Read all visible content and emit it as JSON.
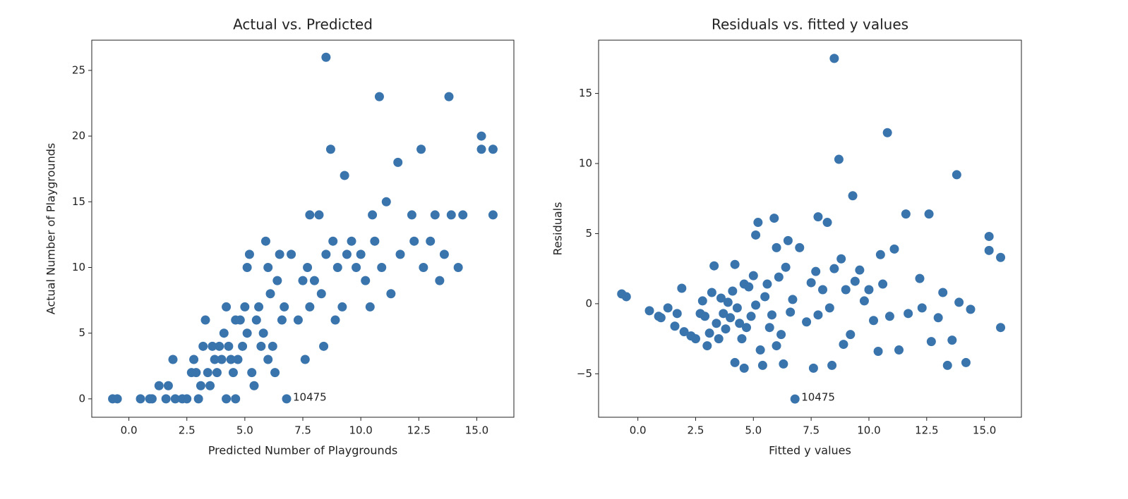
{
  "chart_data": [
    {
      "type": "scatter",
      "title": "Actual vs. Predicted",
      "x_label": "Predicted Number of Playgrounds",
      "y_label": "Actual Number of Playgrounds",
      "color": "#3a74ad",
      "x": [
        -0.7,
        -0.5,
        0.5,
        0.9,
        1.0,
        1.3,
        1.6,
        1.7,
        1.9,
        2.0,
        2.3,
        2.5,
        2.7,
        2.8,
        2.9,
        3.0,
        3.1,
        3.2,
        3.3,
        3.4,
        3.5,
        3.6,
        3.7,
        3.8,
        3.9,
        4.0,
        4.1,
        4.2,
        4.2,
        4.3,
        4.4,
        4.5,
        4.6,
        4.6,
        4.7,
        4.8,
        4.9,
        5.0,
        5.1,
        5.1,
        5.2,
        5.3,
        5.4,
        5.5,
        5.6,
        5.7,
        5.8,
        5.9,
        6.0,
        6.0,
        6.1,
        6.2,
        6.3,
        6.4,
        6.5,
        6.6,
        6.7,
        6.8,
        7.0,
        7.3,
        7.5,
        7.6,
        7.7,
        7.8,
        7.8,
        8.0,
        8.2,
        8.3,
        8.4,
        8.5,
        8.5,
        8.7,
        8.8,
        8.9,
        9.0,
        9.2,
        9.3,
        9.4,
        9.6,
        9.8,
        10.0,
        10.2,
        10.4,
        10.5,
        10.6,
        10.8,
        10.9,
        11.1,
        11.3,
        11.6,
        11.7,
        12.2,
        12.3,
        12.6,
        12.7,
        13.0,
        13.2,
        13.4,
        13.6,
        13.8,
        13.9,
        14.2,
        14.4,
        15.2,
        15.2,
        15.7,
        15.7
      ],
      "values": [
        0,
        0,
        0,
        0,
        0,
        1,
        0,
        1,
        3,
        0,
        0,
        0,
        2,
        3,
        2,
        0,
        1,
        4,
        6,
        2,
        1,
        4,
        3,
        2,
        4,
        3,
        5,
        7,
        0,
        4,
        3,
        2,
        6,
        0,
        3,
        6,
        4,
        7,
        5,
        10,
        11,
        2,
        1,
        6,
        7,
        4,
        5,
        12,
        10,
        3,
        8,
        4,
        2,
        9,
        11,
        6,
        7,
        0,
        11,
        6,
        9,
        3,
        10,
        7,
        14,
        9,
        14,
        8,
        4,
        11,
        26,
        19,
        12,
        6,
        10,
        7,
        17,
        11,
        12,
        10,
        11,
        9,
        7,
        14,
        12,
        23,
        10,
        15,
        8,
        18,
        11,
        14,
        12,
        19,
        10,
        12,
        14,
        9,
        11,
        23,
        14,
        10,
        14,
        20,
        19,
        19,
        14
      ],
      "xlim": [
        -1.6,
        16.6
      ],
      "ylim": [
        -1.4,
        27.3
      ],
      "xticks": [
        {
          "value": 0,
          "label": "0.0"
        },
        {
          "value": 2.5,
          "label": "2.5"
        },
        {
          "value": 5,
          "label": "5.0"
        },
        {
          "value": 7.5,
          "label": "7.5"
        },
        {
          "value": 10,
          "label": "10.0"
        },
        {
          "value": 12.5,
          "label": "12.5"
        },
        {
          "value": 15,
          "label": "15.0"
        }
      ],
      "yticks": [
        0,
        5,
        10,
        15,
        20,
        25
      ],
      "annotations": [
        {
          "text": "10475",
          "x": 6.8,
          "y": 0
        }
      ]
    },
    {
      "type": "scatter",
      "title": "Residuals vs. fitted y values",
      "x_label": "Fitted y values",
      "y_label": "Residuals",
      "color": "#3a74ad",
      "x": [
        -0.7,
        -0.5,
        0.5,
        0.9,
        1.0,
        1.3,
        1.6,
        1.7,
        1.9,
        2.0,
        2.3,
        2.5,
        2.7,
        2.8,
        2.9,
        3.0,
        3.1,
        3.2,
        3.3,
        3.4,
        3.5,
        3.6,
        3.7,
        3.8,
        3.9,
        4.0,
        4.1,
        4.2,
        4.2,
        4.3,
        4.4,
        4.5,
        4.6,
        4.6,
        4.7,
        4.8,
        4.9,
        5.0,
        5.1,
        5.1,
        5.2,
        5.3,
        5.4,
        5.5,
        5.6,
        5.7,
        5.8,
        5.9,
        6.0,
        6.0,
        6.1,
        6.2,
        6.3,
        6.4,
        6.5,
        6.6,
        6.7,
        6.8,
        7.0,
        7.3,
        7.5,
        7.6,
        7.7,
        7.8,
        7.8,
        8.0,
        8.2,
        8.3,
        8.4,
        8.5,
        8.5,
        8.7,
        8.8,
        8.9,
        9.0,
        9.2,
        9.3,
        9.4,
        9.6,
        9.8,
        10.0,
        10.2,
        10.4,
        10.5,
        10.6,
        10.8,
        10.9,
        11.1,
        11.3,
        11.6,
        11.7,
        12.2,
        12.3,
        12.6,
        12.7,
        13.0,
        13.2,
        13.4,
        13.6,
        13.8,
        13.9,
        14.2,
        14.4,
        15.2,
        15.2,
        15.7,
        15.7
      ],
      "values": [
        0.7,
        0.5,
        -0.5,
        -0.9,
        -1.0,
        -0.3,
        -1.6,
        -0.7,
        1.1,
        -2.0,
        -2.3,
        -2.5,
        -0.7,
        0.2,
        -0.9,
        -3.0,
        -2.1,
        0.8,
        2.7,
        -1.4,
        -2.5,
        0.4,
        -0.7,
        -1.8,
        0.1,
        -1.0,
        0.9,
        2.8,
        -4.2,
        -0.3,
        -1.4,
        -2.5,
        1.4,
        -4.6,
        -1.7,
        1.2,
        -0.9,
        2.0,
        -0.1,
        4.9,
        5.8,
        -3.3,
        -4.4,
        0.5,
        1.4,
        -1.7,
        -0.8,
        6.1,
        4.0,
        -3.0,
        1.9,
        -2.2,
        -4.3,
        2.6,
        4.5,
        -0.6,
        0.3,
        -6.8,
        4.0,
        -1.3,
        1.5,
        -4.6,
        2.3,
        -0.8,
        6.2,
        1.0,
        5.8,
        -0.3,
        -4.4,
        2.5,
        17.5,
        10.3,
        3.2,
        -2.9,
        1.0,
        -2.2,
        7.7,
        1.6,
        2.4,
        0.2,
        1.0,
        -1.2,
        -3.4,
        3.5,
        1.4,
        12.2,
        -0.9,
        3.9,
        -3.3,
        6.4,
        -0.7,
        1.8,
        -0.3,
        6.4,
        -2.7,
        -1.0,
        0.8,
        -4.4,
        -2.6,
        9.2,
        0.1,
        -4.2,
        -0.4,
        4.8,
        3.8,
        3.3,
        -1.7
      ],
      "xlim": [
        -1.7,
        16.6
      ],
      "ylim": [
        -8.1,
        18.8
      ],
      "xticks": [
        {
          "value": 0,
          "label": "0.0"
        },
        {
          "value": 2.5,
          "label": "2.5"
        },
        {
          "value": 5,
          "label": "5.0"
        },
        {
          "value": 7.5,
          "label": "7.5"
        },
        {
          "value": 10,
          "label": "10.0"
        },
        {
          "value": 12.5,
          "label": "12.5"
        },
        {
          "value": 15,
          "label": "15.0"
        }
      ],
      "yticks": [
        {
          "value": -5,
          "label": "−5"
        },
        0,
        5,
        10,
        15
      ],
      "annotations": [
        {
          "text": "10475",
          "x": 6.8,
          "y": -6.8
        }
      ]
    }
  ]
}
